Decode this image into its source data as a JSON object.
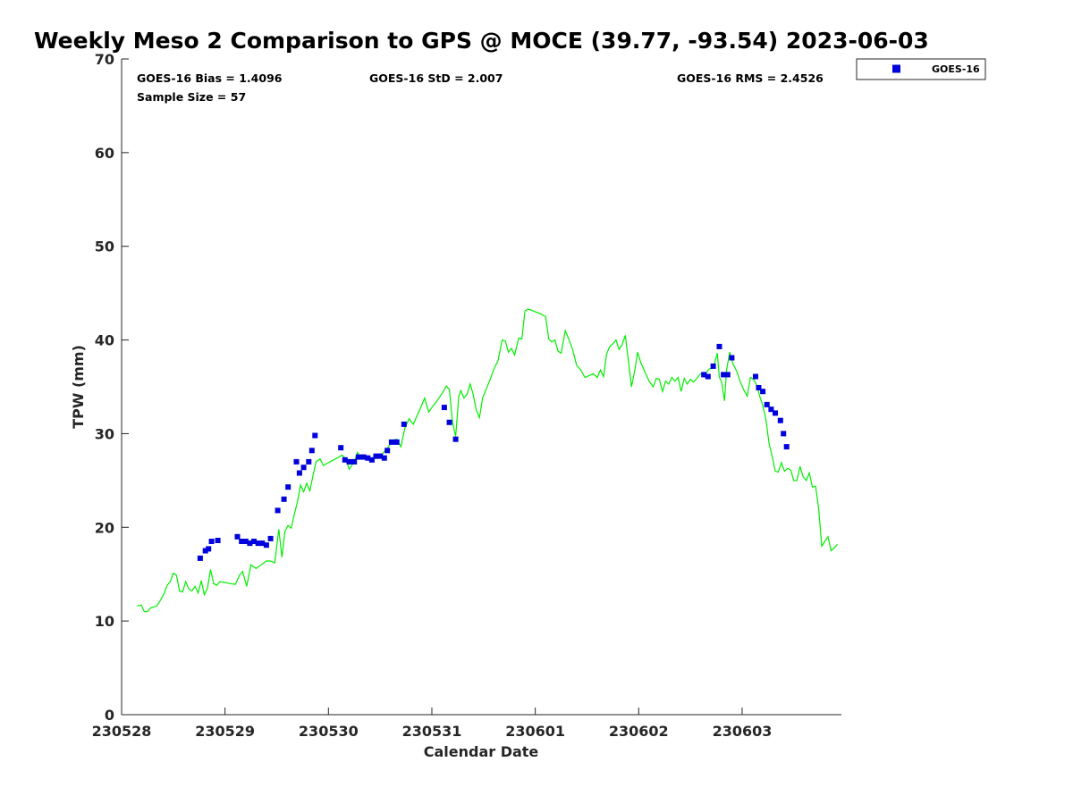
{
  "chart_data": {
    "type": "scatter",
    "title": "Weekly Meso 2 Comparison to GPS @ MOCE (39.77, -93.54) 2023-06-03",
    "xlabel": "Calendar Date",
    "ylabel": "TPW (mm)",
    "ylim": [
      0,
      70
    ],
    "xlim": [
      0,
      6.96
    ],
    "yticks": [
      0,
      10,
      20,
      30,
      40,
      50,
      60,
      70
    ],
    "xticks": [
      {
        "pos": 0,
        "label": "230528"
      },
      {
        "pos": 1,
        "label": "230529"
      },
      {
        "pos": 2,
        "label": "230530"
      },
      {
        "pos": 3,
        "label": "230531"
      },
      {
        "pos": 4,
        "label": "230601"
      },
      {
        "pos": 5,
        "label": "230602"
      },
      {
        "pos": 6,
        "label": "230603"
      }
    ],
    "stats": {
      "bias": "GOES-16 Bias = 1.4096",
      "std": "GOES-16 StD = 2.007",
      "rms": "GOES-16 RMS = 2.4526",
      "sample": "Sample Size = 57"
    },
    "legend": {
      "label": "GOES-16",
      "position": "top-right-outside"
    },
    "colors": {
      "goes": "#0000dd",
      "gps": "#00ee00",
      "axis": "#262626"
    },
    "series": [
      {
        "name": "GPS",
        "style": "line",
        "points": [
          [
            0.15,
            11.6
          ],
          [
            0.19,
            11.7
          ],
          [
            0.22,
            11.0
          ],
          [
            0.25,
            11.0
          ],
          [
            0.28,
            11.4
          ],
          [
            0.31,
            11.5
          ],
          [
            0.34,
            11.6
          ],
          [
            0.38,
            12.3
          ],
          [
            0.41,
            12.9
          ],
          [
            0.44,
            13.8
          ],
          [
            0.47,
            14.2
          ],
          [
            0.5,
            15.1
          ],
          [
            0.53,
            14.9
          ],
          [
            0.56,
            13.2
          ],
          [
            0.59,
            13.1
          ],
          [
            0.62,
            14.2
          ],
          [
            0.65,
            13.4
          ],
          [
            0.68,
            13.2
          ],
          [
            0.71,
            13.7
          ],
          [
            0.74,
            13.0
          ],
          [
            0.77,
            14.3
          ],
          [
            0.8,
            12.8
          ],
          [
            0.83,
            13.5
          ],
          [
            0.86,
            15.5
          ],
          [
            0.89,
            14.0
          ],
          [
            0.92,
            13.8
          ],
          [
            0.95,
            14.2
          ],
          [
            1.0,
            14.1
          ],
          [
            1.05,
            14.0
          ],
          [
            1.1,
            13.9
          ],
          [
            1.14,
            14.9
          ],
          [
            1.17,
            15.3
          ],
          [
            1.21,
            13.7
          ],
          [
            1.25,
            16.0
          ],
          [
            1.3,
            15.6
          ],
          [
            1.35,
            16.0
          ],
          [
            1.4,
            16.4
          ],
          [
            1.44,
            16.4
          ],
          [
            1.48,
            16.2
          ],
          [
            1.52,
            19.8
          ],
          [
            1.55,
            16.8
          ],
          [
            1.58,
            19.6
          ],
          [
            1.61,
            20.2
          ],
          [
            1.64,
            19.9
          ],
          [
            1.67,
            21.4
          ],
          [
            1.7,
            22.7
          ],
          [
            1.73,
            24.5
          ],
          [
            1.76,
            23.8
          ],
          [
            1.79,
            24.7
          ],
          [
            1.82,
            23.9
          ],
          [
            1.85,
            25.5
          ],
          [
            1.88,
            27.0
          ],
          [
            1.92,
            27.3
          ],
          [
            1.95,
            26.6
          ],
          [
            2.0,
            26.9
          ],
          [
            2.05,
            27.2
          ],
          [
            2.1,
            27.5
          ],
          [
            2.13,
            27.7
          ],
          [
            2.17,
            27.3
          ],
          [
            2.2,
            26.2
          ],
          [
            2.25,
            27.0
          ],
          [
            2.28,
            28.0
          ],
          [
            2.32,
            27.3
          ],
          [
            2.36,
            27.4
          ],
          [
            2.42,
            27.0
          ],
          [
            2.47,
            27.6
          ],
          [
            2.5,
            27.5
          ],
          [
            2.54,
            28.1
          ],
          [
            2.58,
            28.6
          ],
          [
            2.62,
            29.3
          ],
          [
            2.66,
            29.4
          ],
          [
            2.7,
            28.6
          ],
          [
            2.74,
            30.6
          ],
          [
            2.78,
            31.6
          ],
          [
            2.82,
            31.0
          ],
          [
            2.86,
            32.0
          ],
          [
            2.9,
            33.0
          ],
          [
            2.93,
            33.8
          ],
          [
            2.97,
            32.3
          ],
          [
            3.0,
            32.8
          ],
          [
            3.05,
            33.5
          ],
          [
            3.1,
            34.3
          ],
          [
            3.14,
            35.1
          ],
          [
            3.17,
            34.7
          ],
          [
            3.2,
            31.2
          ],
          [
            3.23,
            29.7
          ],
          [
            3.26,
            34.0
          ],
          [
            3.28,
            34.6
          ],
          [
            3.31,
            33.8
          ],
          [
            3.34,
            34.2
          ],
          [
            3.37,
            35.3
          ],
          [
            3.4,
            34.2
          ],
          [
            3.43,
            32.5
          ],
          [
            3.46,
            31.7
          ],
          [
            3.49,
            33.8
          ],
          [
            3.52,
            34.6
          ],
          [
            3.56,
            35.7
          ],
          [
            3.6,
            36.9
          ],
          [
            3.64,
            37.8
          ],
          [
            3.68,
            40.0
          ],
          [
            3.71,
            39.9
          ],
          [
            3.74,
            38.7
          ],
          [
            3.77,
            39.1
          ],
          [
            3.8,
            38.4
          ],
          [
            3.84,
            40.2
          ],
          [
            3.87,
            40.1
          ],
          [
            3.9,
            43.1
          ],
          [
            3.93,
            43.3
          ],
          [
            3.96,
            43.2
          ],
          [
            4.0,
            43.0
          ],
          [
            4.05,
            42.8
          ],
          [
            4.1,
            42.5
          ],
          [
            4.13,
            40.1
          ],
          [
            4.16,
            39.8
          ],
          [
            4.19,
            40.0
          ],
          [
            4.22,
            38.8
          ],
          [
            4.25,
            38.6
          ],
          [
            4.29,
            41.0
          ],
          [
            4.32,
            40.2
          ],
          [
            4.36,
            39.0
          ],
          [
            4.4,
            37.3
          ],
          [
            4.44,
            36.8
          ],
          [
            4.48,
            36.0
          ],
          [
            4.52,
            36.2
          ],
          [
            4.56,
            36.4
          ],
          [
            4.6,
            36.0
          ],
          [
            4.63,
            36.8
          ],
          [
            4.66,
            36.1
          ],
          [
            4.69,
            38.5
          ],
          [
            4.72,
            39.3
          ],
          [
            4.75,
            39.6
          ],
          [
            4.78,
            40.0
          ],
          [
            4.81,
            39.0
          ],
          [
            4.84,
            39.5
          ],
          [
            4.87,
            40.5
          ],
          [
            4.9,
            37.8
          ],
          [
            4.93,
            35.0
          ],
          [
            4.96,
            36.6
          ],
          [
            4.99,
            38.7
          ],
          [
            5.02,
            37.6
          ],
          [
            5.06,
            36.6
          ],
          [
            5.1,
            35.6
          ],
          [
            5.14,
            35.0
          ],
          [
            5.17,
            35.9
          ],
          [
            5.2,
            35.8
          ],
          [
            5.23,
            34.5
          ],
          [
            5.26,
            35.6
          ],
          [
            5.29,
            35.3
          ],
          [
            5.32,
            36.0
          ],
          [
            5.35,
            35.6
          ],
          [
            5.38,
            36.0
          ],
          [
            5.41,
            34.5
          ],
          [
            5.44,
            35.9
          ],
          [
            5.47,
            35.3
          ],
          [
            5.5,
            35.8
          ],
          [
            5.53,
            35.5
          ],
          [
            5.57,
            36.0
          ],
          [
            5.6,
            36.4
          ],
          [
            5.64,
            36.3
          ],
          [
            5.68,
            36.9
          ],
          [
            5.72,
            37.0
          ],
          [
            5.74,
            37.8
          ],
          [
            5.76,
            38.6
          ],
          [
            5.78,
            36.0
          ],
          [
            5.8,
            35.6
          ],
          [
            5.83,
            33.5
          ],
          [
            5.85,
            36.8
          ],
          [
            5.88,
            38.7
          ],
          [
            5.91,
            37.5
          ],
          [
            5.95,
            36.6
          ],
          [
            5.98,
            35.6
          ],
          [
            6.01,
            34.8
          ],
          [
            6.05,
            34.0
          ],
          [
            6.08,
            36.0
          ],
          [
            6.11,
            35.8
          ],
          [
            6.14,
            35.2
          ],
          [
            6.17,
            34.0
          ],
          [
            6.2,
            33.0
          ],
          [
            6.23,
            31.5
          ],
          [
            6.26,
            29.0
          ],
          [
            6.29,
            27.6
          ],
          [
            6.32,
            26.0
          ],
          [
            6.35,
            25.9
          ],
          [
            6.38,
            26.9
          ],
          [
            6.41,
            26.0
          ],
          [
            6.44,
            26.3
          ],
          [
            6.47,
            26.1
          ],
          [
            6.5,
            25.0
          ],
          [
            6.53,
            25.0
          ],
          [
            6.56,
            26.5
          ],
          [
            6.59,
            25.4
          ],
          [
            6.62,
            25.0
          ],
          [
            6.65,
            25.8
          ],
          [
            6.68,
            24.3
          ],
          [
            6.71,
            24.4
          ],
          [
            6.74,
            22.0
          ],
          [
            6.77,
            18.0
          ],
          [
            6.8,
            18.5
          ],
          [
            6.83,
            19.0
          ],
          [
            6.86,
            17.5
          ],
          [
            6.89,
            17.8
          ],
          [
            6.92,
            18.2
          ]
        ]
      },
      {
        "name": "GOES-16",
        "style": "marker",
        "points": [
          [
            0.76,
            16.7
          ],
          [
            0.81,
            17.5
          ],
          [
            0.84,
            17.7
          ],
          [
            0.87,
            18.5
          ],
          [
            0.93,
            18.6
          ],
          [
            1.12,
            19.0
          ],
          [
            1.16,
            18.5
          ],
          [
            1.2,
            18.5
          ],
          [
            1.24,
            18.3
          ],
          [
            1.28,
            18.5
          ],
          [
            1.32,
            18.3
          ],
          [
            1.36,
            18.3
          ],
          [
            1.4,
            18.1
          ],
          [
            1.44,
            18.8
          ],
          [
            1.51,
            21.8
          ],
          [
            1.57,
            23.0
          ],
          [
            1.61,
            24.3
          ],
          [
            1.69,
            27.0
          ],
          [
            1.72,
            25.8
          ],
          [
            1.76,
            26.4
          ],
          [
            1.81,
            27.0
          ],
          [
            1.84,
            28.2
          ],
          [
            1.87,
            29.8
          ],
          [
            2.12,
            28.5
          ],
          [
            2.16,
            27.2
          ],
          [
            2.2,
            27.0
          ],
          [
            2.25,
            27.0
          ],
          [
            2.29,
            27.5
          ],
          [
            2.34,
            27.5
          ],
          [
            2.38,
            27.4
          ],
          [
            2.42,
            27.2
          ],
          [
            2.46,
            27.6
          ],
          [
            2.5,
            27.6
          ],
          [
            2.54,
            27.4
          ],
          [
            2.57,
            28.2
          ],
          [
            2.61,
            29.1
          ],
          [
            2.66,
            29.1
          ],
          [
            2.73,
            31.0
          ],
          [
            3.12,
            32.8
          ],
          [
            3.17,
            31.2
          ],
          [
            3.23,
            29.4
          ],
          [
            5.63,
            36.3
          ],
          [
            5.67,
            36.1
          ],
          [
            5.72,
            37.2
          ],
          [
            5.78,
            39.3
          ],
          [
            5.82,
            36.3
          ],
          [
            5.86,
            36.3
          ],
          [
            5.9,
            38.1
          ],
          [
            6.13,
            36.1
          ],
          [
            6.16,
            34.9
          ],
          [
            6.2,
            34.5
          ],
          [
            6.24,
            33.1
          ],
          [
            6.28,
            32.6
          ],
          [
            6.32,
            32.2
          ],
          [
            6.37,
            31.4
          ],
          [
            6.4,
            30.0
          ],
          [
            6.43,
            28.6
          ]
        ]
      }
    ]
  }
}
